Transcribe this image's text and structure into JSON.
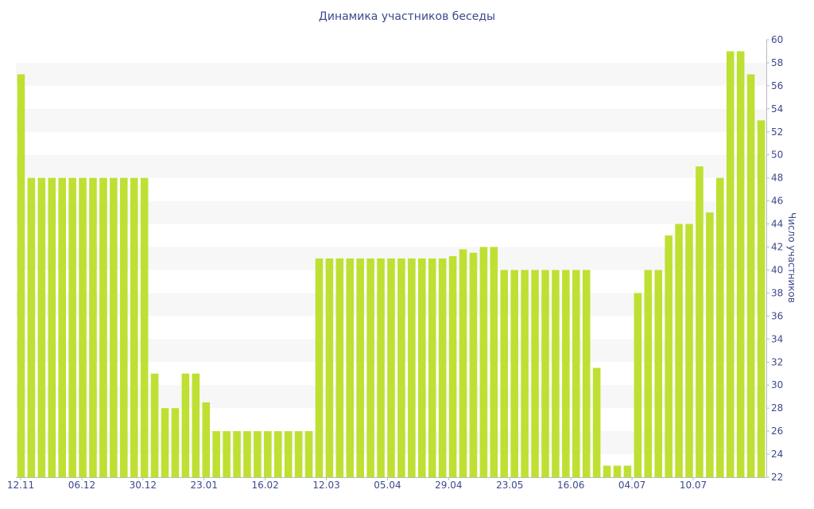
{
  "chart_data": {
    "type": "bar",
    "title": "Динамика участников беседы",
    "ylabel": "Число участников",
    "xlabel": "",
    "ylim": [
      22,
      60
    ],
    "y_ticks": [
      22,
      24,
      26,
      28,
      30,
      32,
      34,
      36,
      38,
      40,
      42,
      44,
      46,
      48,
      50,
      52,
      54,
      56,
      58,
      60
    ],
    "y_axis_side": "right",
    "grid": "alternating horizontal bands",
    "x_tick_labels": [
      "12.11",
      "06.12",
      "30.12",
      "23.01",
      "16.02",
      "12.03",
      "05.04",
      "29.04",
      "23.05",
      "16.06",
      "04.07",
      "10.07"
    ],
    "values": [
      57,
      48,
      48,
      48,
      48,
      48,
      48,
      48,
      48,
      48,
      48,
      48,
      48,
      31,
      28,
      28,
      31,
      31,
      28.5,
      26,
      26,
      26,
      26,
      26,
      26,
      26,
      26,
      26,
      26,
      41,
      41,
      41,
      41,
      41,
      41,
      41,
      41,
      41,
      41,
      41,
      41,
      41,
      41.2,
      41.8,
      41.5,
      42,
      42,
      40,
      40,
      40,
      40,
      40,
      40,
      40,
      40,
      40,
      31.5,
      23,
      23,
      23,
      38,
      40,
      40,
      43,
      44,
      44,
      49,
      45,
      48,
      59,
      59,
      57,
      53
    ],
    "colors": {
      "bar": "#bee033",
      "band": "#f7f7f7",
      "text": "#3b4a8c",
      "axis": "#bbbbbb"
    }
  }
}
